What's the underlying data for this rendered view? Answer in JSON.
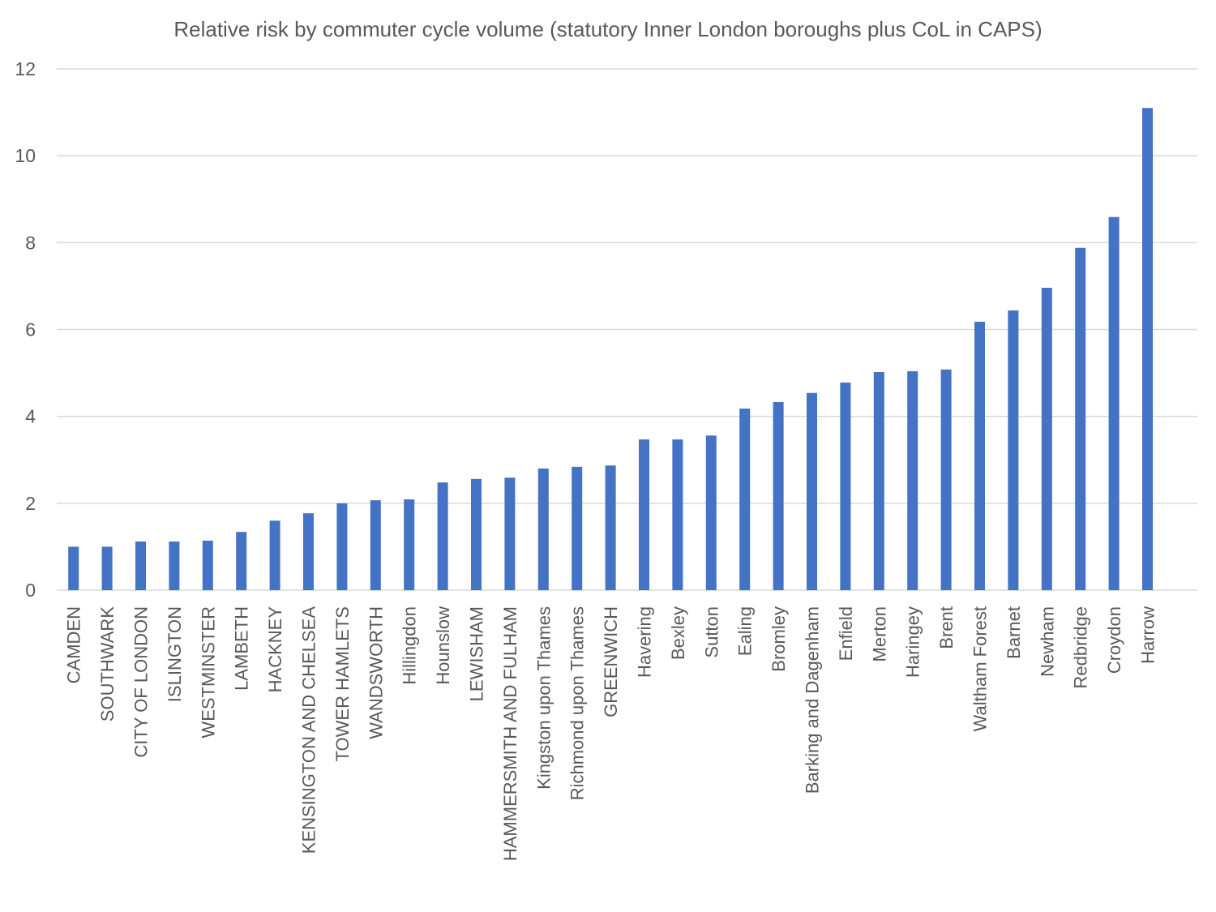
{
  "chart_data": {
    "type": "bar",
    "title": "Relative risk by commuter cycle volume (statutory Inner London boroughs plus CoL in CAPS)",
    "xlabel": "",
    "ylabel": "",
    "ylim": [
      0,
      12
    ],
    "yticks": [
      0,
      2,
      4,
      6,
      8,
      10,
      12
    ],
    "grid": true,
    "legend": "none",
    "bar_color": "#4472C4",
    "categories": [
      "CAMDEN",
      "SOUTHWARK",
      "CITY OF LONDON",
      "ISLINGTON",
      "WESTMINSTER",
      "LAMBETH",
      "HACKNEY",
      "KENSINGTON AND CHELSEA",
      "TOWER HAMLETS",
      "WANDSWORTH",
      "Hillingdon",
      "Hounslow",
      "LEWISHAM",
      "HAMMERSMITH AND FULHAM",
      "Kingston upon Thames",
      "Richmond upon Thames",
      "GREENWICH",
      "Havering",
      "Bexley",
      "Sutton",
      "Ealing",
      "Bromley",
      "Barking and Dagenham",
      "Enfield",
      "Merton",
      "Haringey",
      "Brent",
      "Waltham Forest",
      "Barnet",
      "Newham",
      "Redbridge",
      "Croydon",
      "Harrow"
    ],
    "values": [
      1.0,
      1.0,
      1.12,
      1.12,
      1.14,
      1.34,
      1.6,
      1.77,
      2.0,
      2.07,
      2.09,
      2.48,
      2.56,
      2.59,
      2.8,
      2.84,
      2.87,
      3.47,
      3.47,
      3.56,
      4.18,
      4.33,
      4.54,
      4.78,
      5.02,
      5.04,
      5.08,
      6.18,
      6.44,
      6.96,
      7.88,
      8.59,
      11.1
    ]
  }
}
